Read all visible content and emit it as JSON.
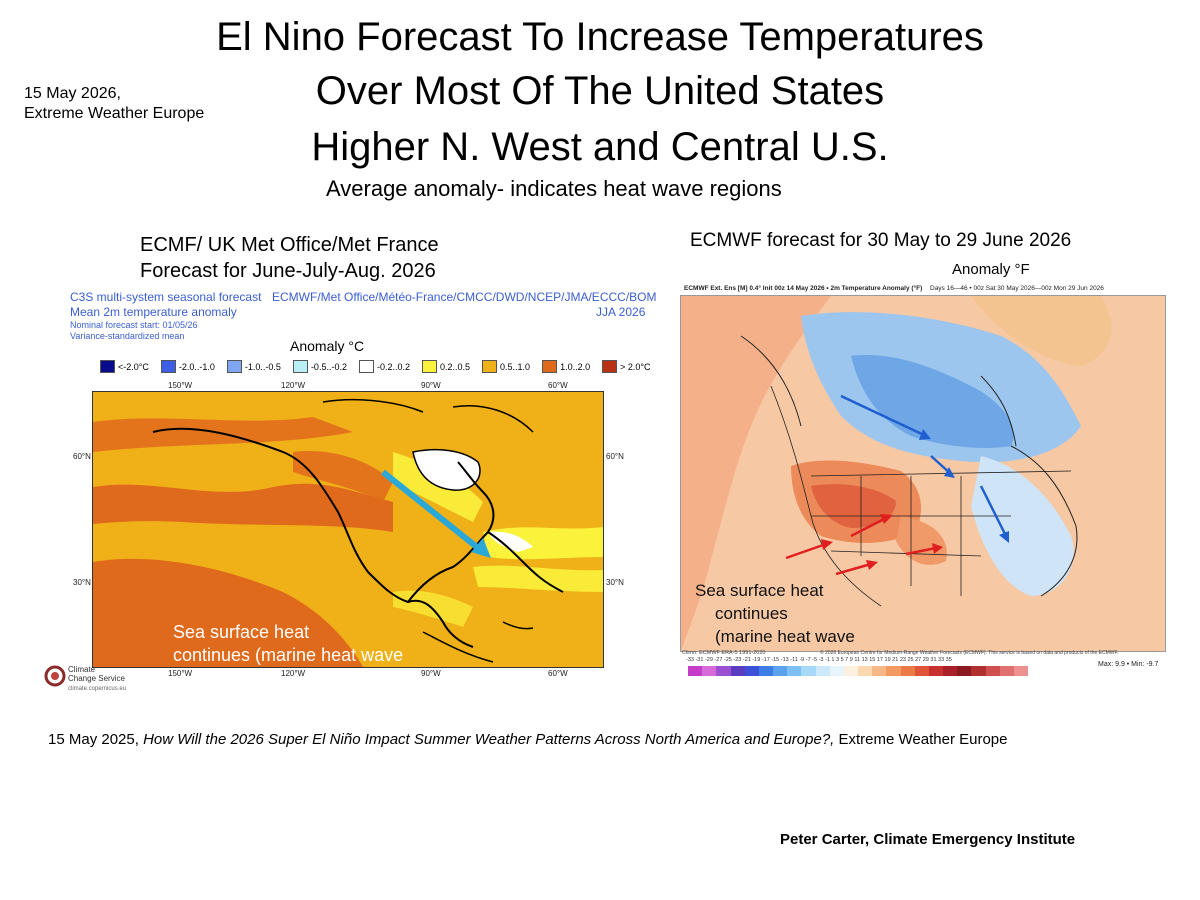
{
  "header": {
    "title_line1": "El Nino Forecast To Increase Temperatures",
    "title_line2": "Over Most Of The United States",
    "title_line3": "Higher N. West and Central U.S.",
    "subtitle": "Average anomaly- indicates heat wave regions",
    "date_line1": "15 May 2026,",
    "date_line2": "Extreme Weather Europe"
  },
  "left_panel": {
    "heading_line1": "ECMF/ UK Met Office/Met France",
    "heading_line2": "Forecast for June-July-Aug. 2026",
    "c3s_title1": "C3S multi-system seasonal forecast",
    "c3s_title2": "Mean 2m temperature anomaly",
    "c3s_start": "Nominal forecast start: 01/05/26",
    "c3s_mean": "Variance-standardized mean",
    "agencies": "ECMWF/Met Office/Météo-France/CMCC/DWD/NCEP/JMA/ECCC/BOM",
    "season": "JJA 2026",
    "anomaly_label": "Anomaly °C",
    "legend": [
      {
        "label": "<-2.0°C",
        "color": "#0a0a8c"
      },
      {
        "label": "-2.0..-1.0",
        "color": "#3f5ee6"
      },
      {
        "label": "-1.0..-0.5",
        "color": "#7fa6f0"
      },
      {
        "label": "-0.5..-0.2",
        "color": "#b9f0f5"
      },
      {
        "label": "-0.2..0.2",
        "color": "#ffffff"
      },
      {
        "label": "0.2..0.5",
        "color": "#fbf23c"
      },
      {
        "label": "0.5..1.0",
        "color": "#f0b018"
      },
      {
        "label": "1.0..2.0",
        "color": "#e06a1c"
      },
      {
        "label": "> 2.0°C",
        "color": "#b83214"
      }
    ],
    "lon_top": [
      "150°W",
      "120°W",
      "90°W",
      "60°W"
    ],
    "lon_bottom": [
      "150°W",
      "120°W",
      "90°W",
      "60°W"
    ],
    "lat_left": [
      "60°N",
      "30°N"
    ],
    "lat_right": [
      "60°N",
      "30°N"
    ],
    "overlay_line1": "Sea surface heat",
    "overlay_line2": "continues (marine heat wave",
    "logo_line1": "Climate",
    "logo_line2": "Change Service",
    "logo_url": "climate.copernicus.eu"
  },
  "right_panel": {
    "heading": "ECMWF forecast for 30 May to 29 June 2026",
    "anomaly_label": "Anomaly °F",
    "map_header_left": "ECMWF Ext. Ens [M] 0.4° Init 00z 14 May 2026 • 2m Temperature Anomaly (°F)",
    "map_header_right": "Days 16—46 • 00z Sat 30 May 2026—00z Mon 29 Jun 2026",
    "overlay_line1": "Sea surface heat",
    "overlay_line2": "continues",
    "overlay_line3": "(marine heat wave",
    "footer_left": "Climo: ECMWF ERA-5 1991-2020",
    "footer_mid": "© 2026 European Centre for Medium-Range Weather Forecasts (ECMWF). This service is based on data and products of the ECMWF.",
    "colorbar_ticks": "-33 -31 -29 -27 -25 -23 -21 -19 -17 -15 -13 -11 -9 -7 -5 -3 -1 1 3 5 7 9 11 13 15 17 19 21 23 25 27 29 31 33 35",
    "maxmin": "Max: 9.9 • Min: -9.7",
    "colorbar_colors": [
      "#c43cc8",
      "#d66ad8",
      "#9a50d0",
      "#5a3cc0",
      "#3c50d8",
      "#3c7ee6",
      "#5aa2ee",
      "#7ec0f4",
      "#a6d8f8",
      "#cce8fa",
      "#e8f4fc",
      "#fdf0e0",
      "#fbd8b0",
      "#f7b888",
      "#f29a62",
      "#ec7a44",
      "#e0543a",
      "#c83030",
      "#a82028",
      "#8c1820",
      "#b03030",
      "#d05050",
      "#e07070",
      "#ec9090"
    ]
  },
  "footer": {
    "citation_prefix": "15 May 2025, ",
    "citation_title": "How Will the 2026 Super El Niño Impact Summer Weather Patterns Across North America and Europe?,",
    "citation_suffix": " Extreme Weather Europe",
    "credit": "Peter Carter, Climate Emergency Institute"
  }
}
